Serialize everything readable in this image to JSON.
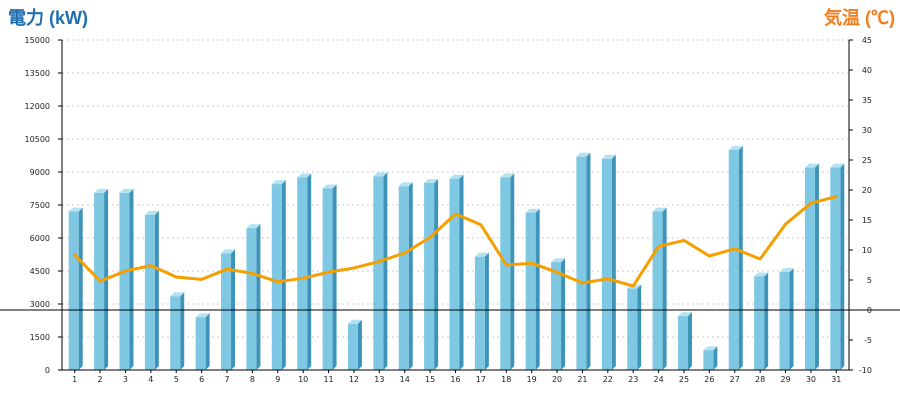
{
  "chart_data": {
    "type": "bar",
    "left_axis_title": "電力 (kW)",
    "right_axis_title": "気温 (℃)",
    "categories": [
      "1",
      "2",
      "3",
      "4",
      "5",
      "6",
      "7",
      "8",
      "9",
      "10",
      "11",
      "12",
      "13",
      "14",
      "15",
      "16",
      "17",
      "18",
      "19",
      "20",
      "21",
      "22",
      "23",
      "24",
      "25",
      "26",
      "27",
      "28",
      "29",
      "30",
      "31"
    ],
    "series": [
      {
        "axis": "left",
        "type": "bar",
        "color": "#7ec8e3",
        "values": [
          7200,
          8050,
          8050,
          7050,
          3350,
          2400,
          5300,
          6450,
          8450,
          8750,
          8250,
          2100,
          8800,
          8350,
          8500,
          8700,
          5150,
          8750,
          7150,
          4900,
          9700,
          9600,
          3700,
          7200,
          2450,
          900,
          10000,
          4250,
          4450,
          9200,
          9200
        ]
      },
      {
        "axis": "right",
        "type": "line",
        "color": "#f5a000",
        "values": [
          9.2,
          4.8,
          6.5,
          7.4,
          5.5,
          5.1,
          6.8,
          6.1,
          4.7,
          5.3,
          6.3,
          7.0,
          8.1,
          9.5,
          12.1,
          16.0,
          14.2,
          7.5,
          7.8,
          6.3,
          4.5,
          5.2,
          4.0,
          10.6,
          11.6,
          9.0,
          10.2,
          8.5,
          14.3,
          17.8,
          18.9
        ]
      }
    ],
    "left_axis": {
      "min": 0,
      "max": 15000,
      "ticks": [
        "0",
        "1500",
        "3000",
        "4500",
        "6000",
        "7500",
        "9000",
        "10500",
        "12000",
        "13500",
        "15000"
      ]
    },
    "right_axis": {
      "min": -10,
      "max": 45,
      "ticks": [
        "-10",
        "-5",
        "0",
        "5",
        "10",
        "15",
        "20",
        "25",
        "30",
        "35",
        "40",
        "45"
      ]
    },
    "grid": true,
    "colors": {
      "left_title": "#1f6fb0",
      "right_title": "#f07e22",
      "bar_front": "#7ec8e3",
      "bar_side": "#3e94b8",
      "bar_top": "#b5e2f2",
      "line": "#f5a000",
      "grid": "#bbbbbb",
      "zero_line": "#000000"
    }
  }
}
